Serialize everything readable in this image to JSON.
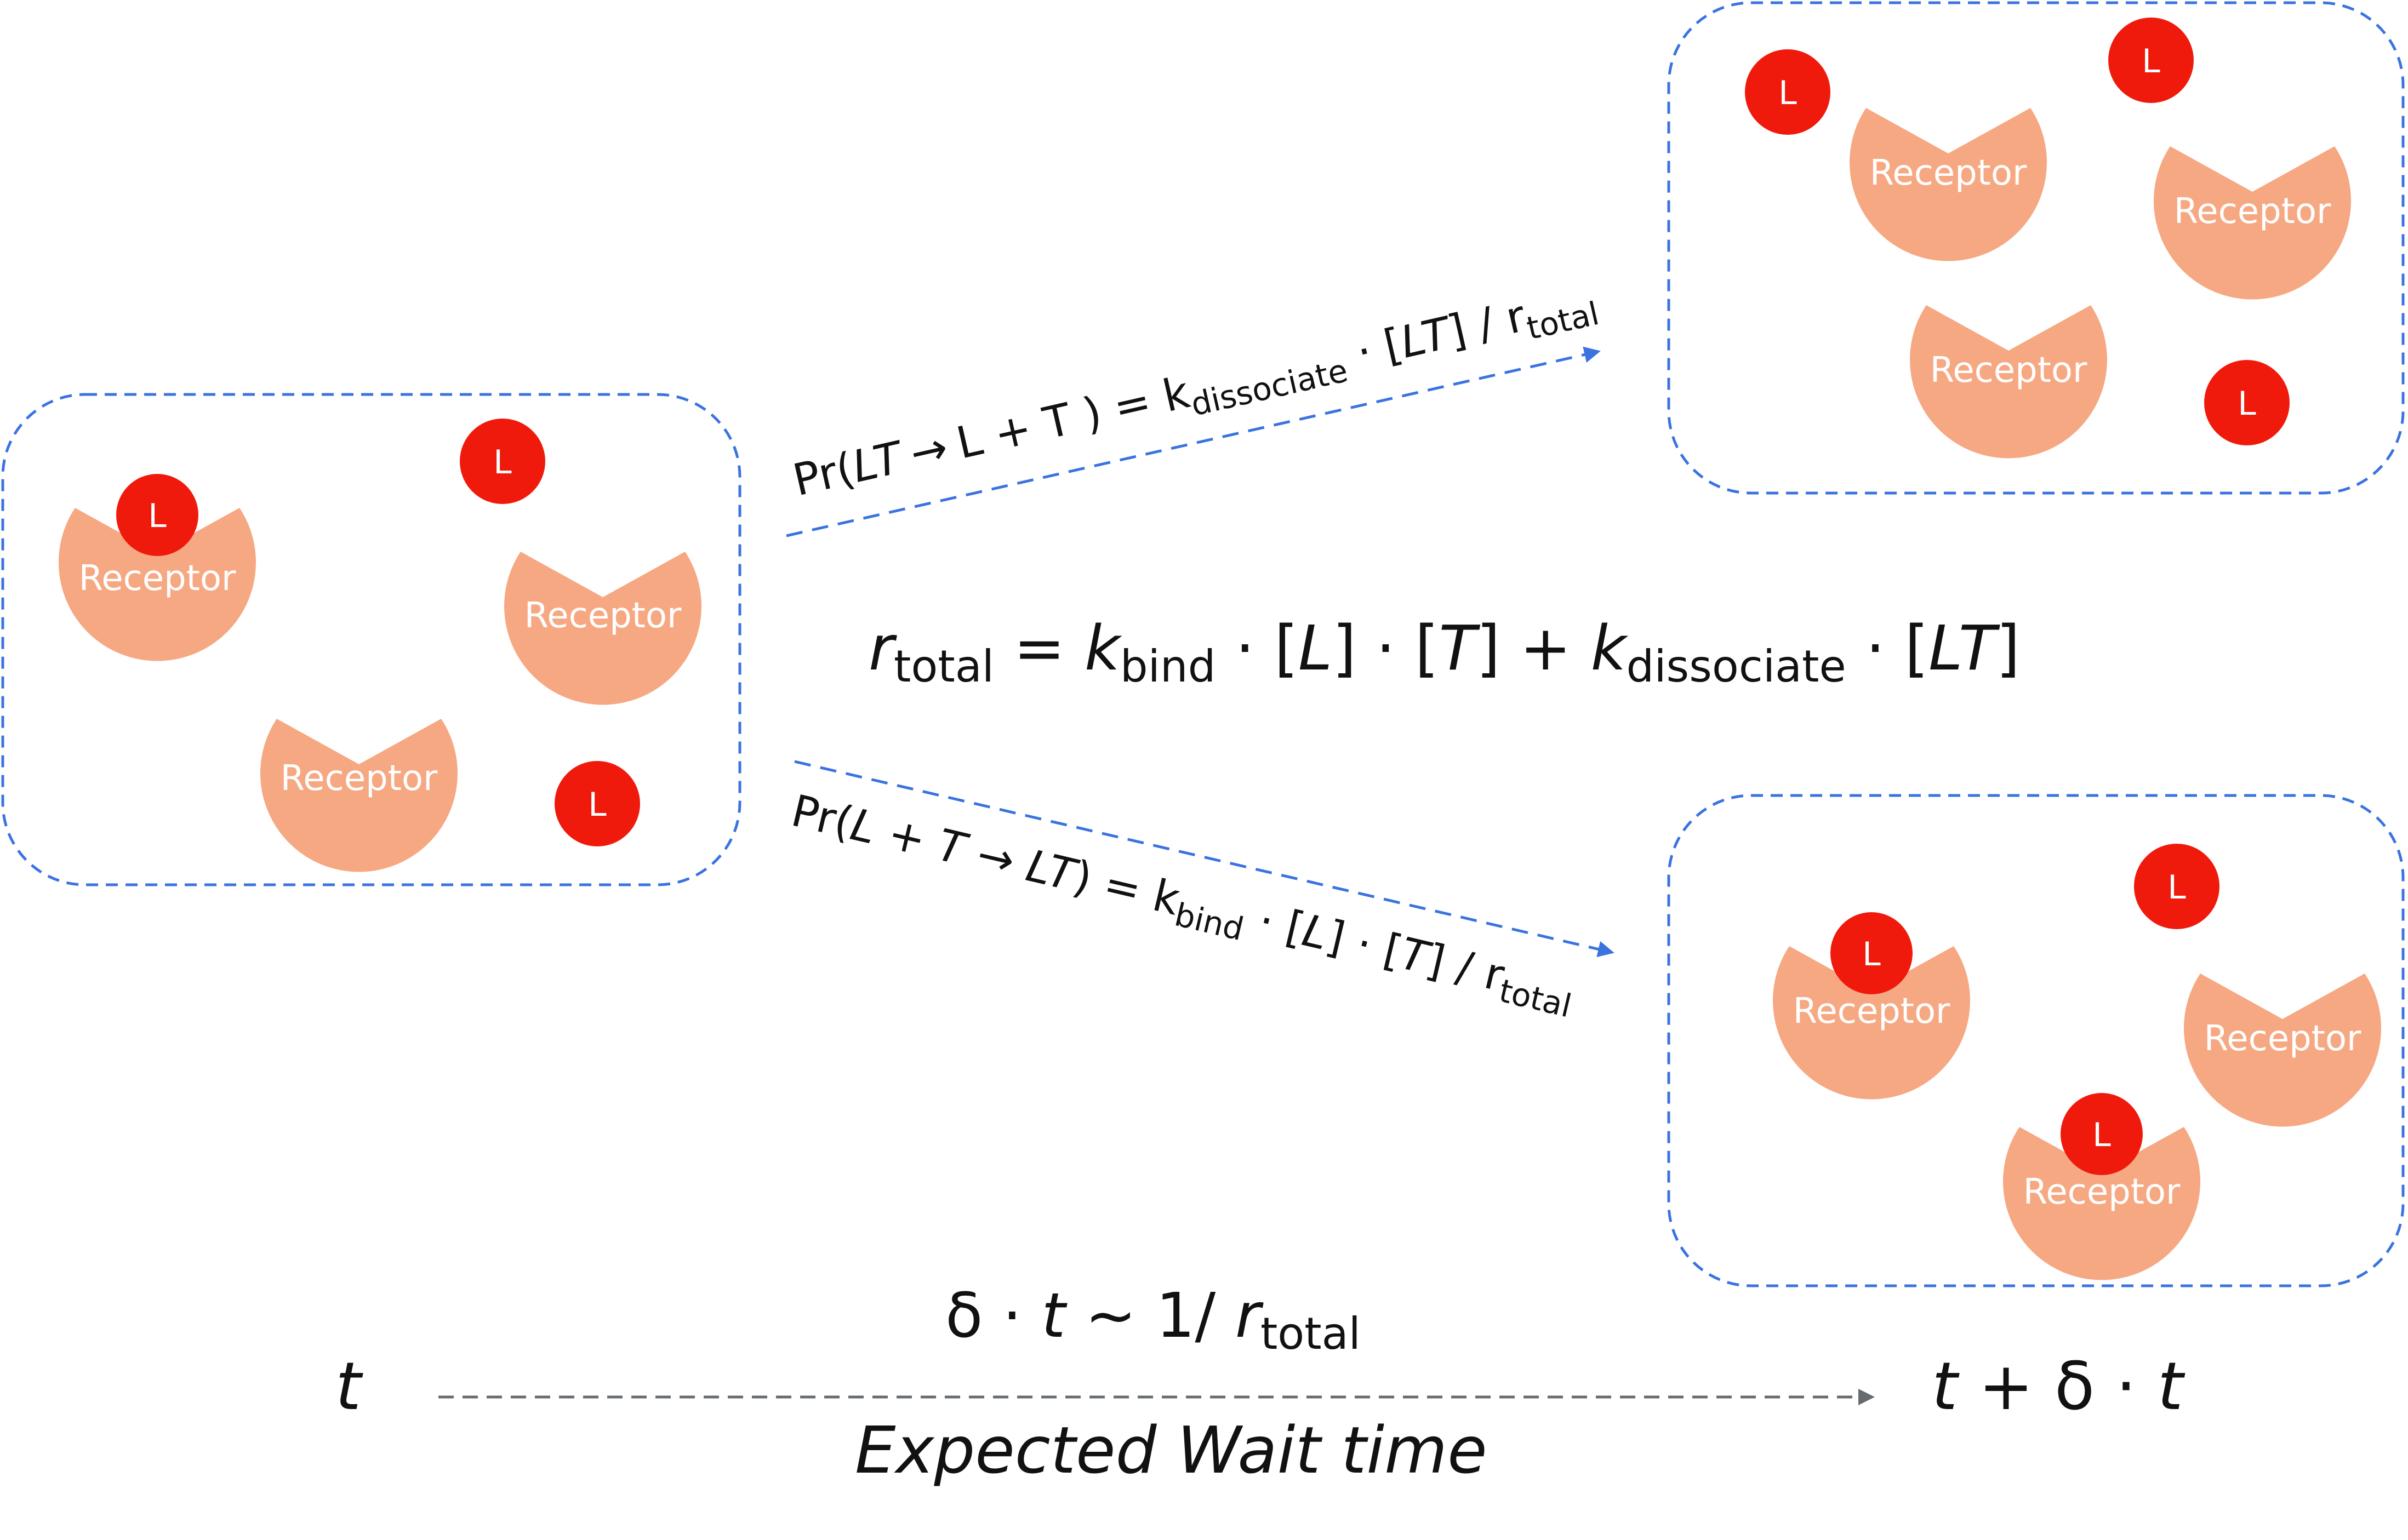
{
  "colors": {
    "receptor": "#f6a883",
    "ligand": "#f01a0c",
    "box_border": "#3a73e0",
    "arrow_blue": "#3a73e0",
    "arrow_gray": "#666b70",
    "text": "#111111"
  },
  "labels": {
    "receptor": "Receptor",
    "ligand": "L"
  },
  "dissociation_eq": {
    "pr": "Pr(",
    "lt": "LT",
    "arrow": "→",
    "l": "L",
    "plus": " + ",
    "t": "T",
    "close_eq": " ) = k",
    "k_sub": "dissociate",
    "dot": " · [",
    "lt2": "LT",
    "div": "] / r",
    "r_sub": "total"
  },
  "binding_eq": {
    "pr": "Pr(",
    "l": "L",
    "plus": " + ",
    "t": "T",
    "arrow": " → ",
    "lt": "LT",
    "close_eq": ") = k",
    "k_sub": "bind",
    "dot1": " · [",
    "l2": "L",
    "dot2": "] · [",
    "t2": "T",
    "div": "] / r",
    "r_sub": "total"
  },
  "rate_eq": {
    "r": "r",
    "r_sub": "total",
    "eq": " = ",
    "k1": "k",
    "k1_sub": "bind",
    "part1": " · [",
    "l": "L",
    "part2": "] · [",
    "t": "T",
    "part3": "] + ",
    "k2": "k",
    "k2_sub": "dissociate",
    "part4": " · [",
    "lt": "LT",
    "part5": "]"
  },
  "timeline": {
    "start": "t",
    "end_t1": "t",
    "end_mid": " + δ · ",
    "end_t2": "t",
    "delta_pre": "δ · ",
    "delta_t": "t",
    "delta_mid": " ~ 1/ ",
    "delta_r": "r",
    "delta_sub": "total",
    "caption": "Expected Wait time"
  }
}
